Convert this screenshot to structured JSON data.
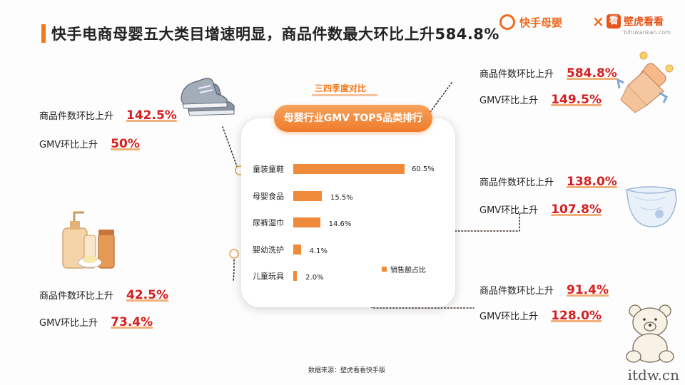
{
  "title": "快手电商母婴五大类目增速明显，商品件数最大环比上升584.8%",
  "brands": {
    "kuaishou": "快手母婴",
    "cross": "×",
    "huxiu_badge": "看",
    "huxiu_name": "壁虎看看",
    "huxiu_url": "bihukankan.com"
  },
  "chart_data": {
    "type": "bar",
    "subtitle": "三四季度对比",
    "title": "母婴行业GMV TOP5品类排行",
    "categories": [
      "童装童鞋",
      "母婴食品",
      "尿裤湿巾",
      "婴幼洗护",
      "儿童玩具"
    ],
    "series": [
      {
        "name": "销售额占比",
        "values": [
          60.5,
          15.5,
          14.6,
          4.1,
          2.0
        ]
      }
    ],
    "value_labels": [
      "60.5%",
      "15.5%",
      "14.6%",
      "4.1%",
      "2.0%"
    ],
    "orientation": "horizontal",
    "xlim": [
      0,
      60.5
    ],
    "legend_position": "bottom-right",
    "bar_color": "#ef8a3a"
  },
  "callouts": [
    {
      "item_label": "商品件数环比上升",
      "item_value": "142.5%",
      "gmv_label": "GMV环比上升",
      "gmv_value": "50%",
      "icon": "baby-shoes-icon"
    },
    {
      "item_label": "商品件数环比上升",
      "item_value": "42.5%",
      "gmv_label": "GMV环比上升",
      "gmv_value": "73.4%",
      "icon": "baby-toiletries-icon"
    },
    {
      "item_label": "商品件数环比上升",
      "item_value": "584.8%",
      "gmv_label": "GMV环比上升",
      "gmv_value": "149.5%",
      "icon": "baby-bottle-icon"
    },
    {
      "item_label": "商品件数环比上升",
      "item_value": "138.0%",
      "gmv_label": "GMV环比上升",
      "gmv_value": "107.8%",
      "icon": "diaper-icon"
    },
    {
      "item_label": "商品件数环比上升",
      "item_value": "91.4%",
      "gmv_label": "GMV环比上升",
      "gmv_value": "128.0%",
      "icon": "teddy-bear-icon"
    }
  ],
  "source": "数据来源：壁虎看看快手版",
  "watermark": "itdw.cn",
  "colors": {
    "accent": "#f07a1e",
    "highlight": "#d42020"
  }
}
